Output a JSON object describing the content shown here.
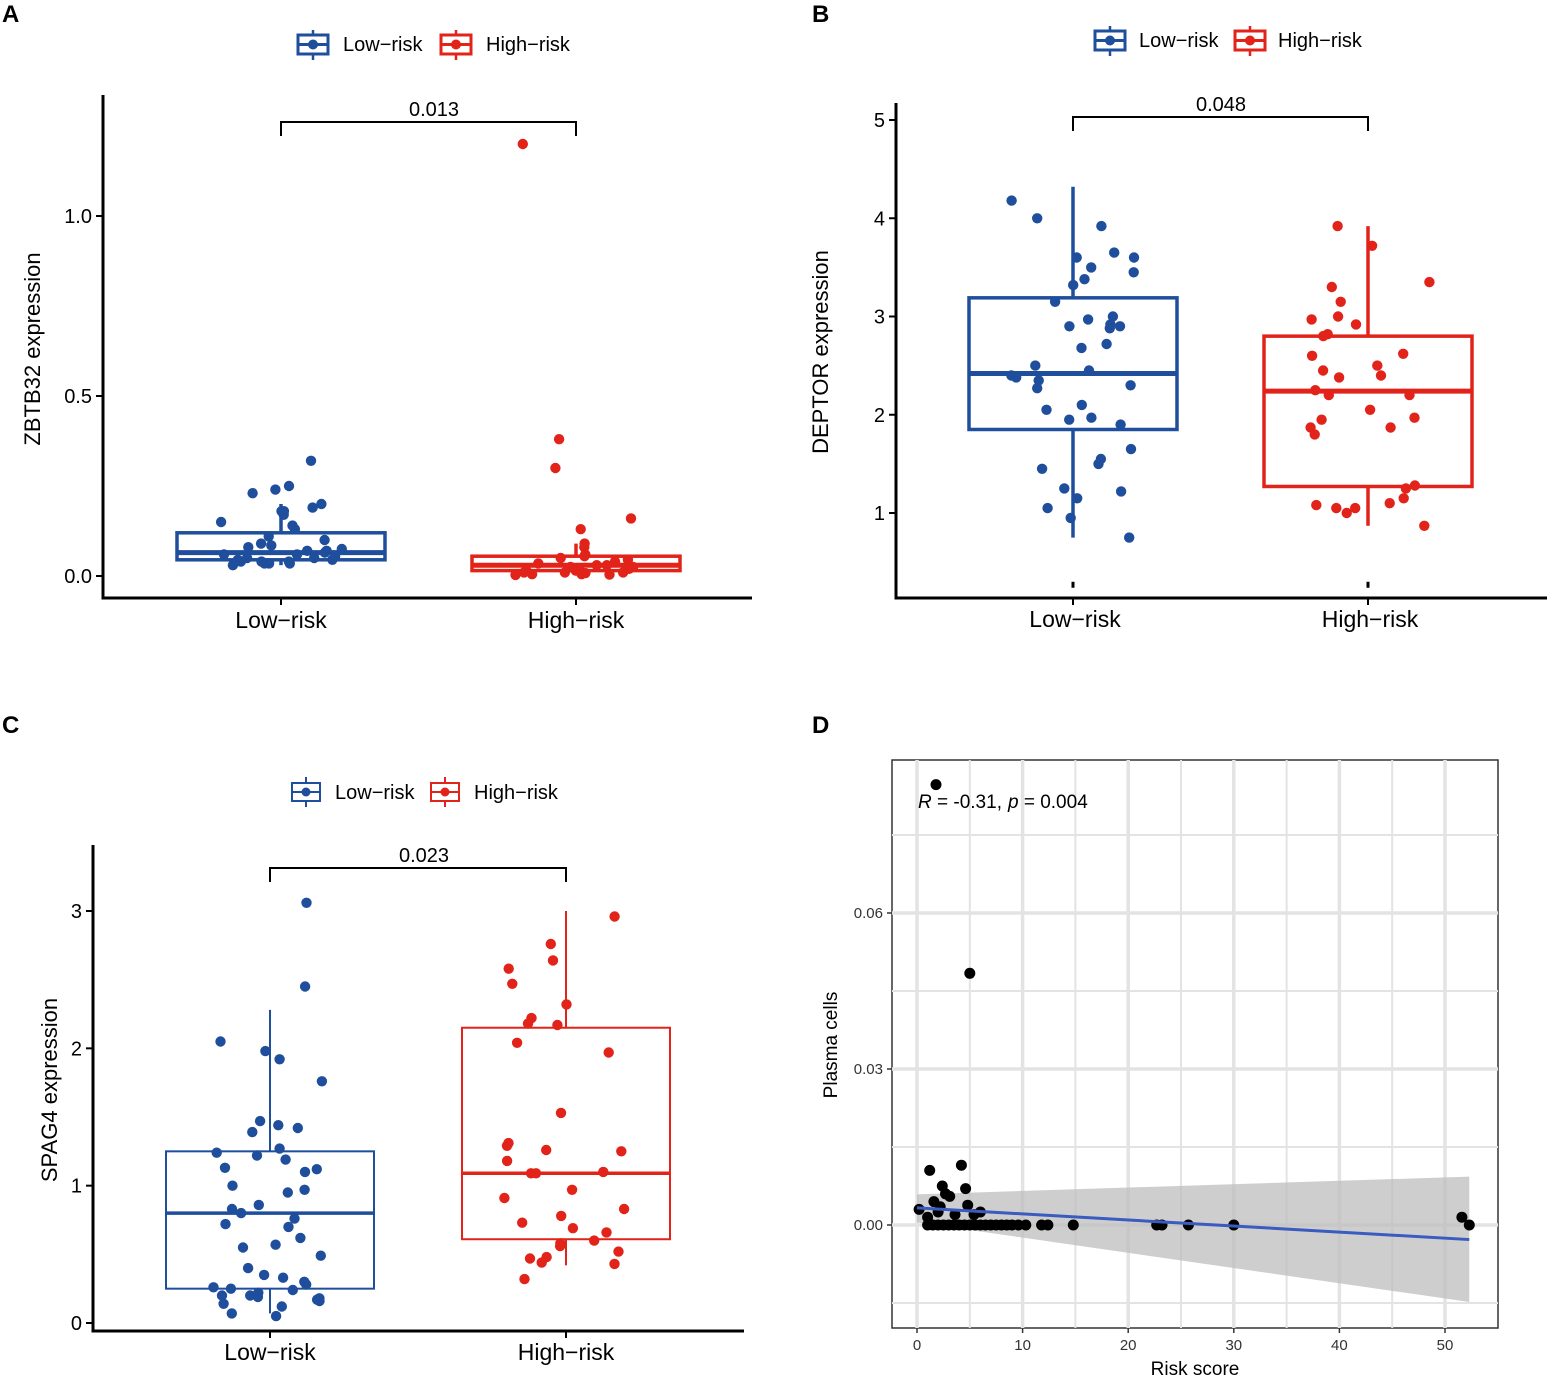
{
  "chart_data": [
    {
      "panel": "A",
      "type": "box",
      "ylabel": "ZBTB32 expression",
      "categories": [
        "Low−risk",
        "High−risk"
      ],
      "legend": [
        "Low−risk",
        "High−risk"
      ],
      "legend_position": "top",
      "ylim": [
        -0.06,
        1.33
      ],
      "yticks": [
        0.0,
        0.5,
        1.0
      ],
      "ytick_labels": [
        "0.0",
        "0.5",
        "1.0"
      ],
      "pvalue": "0.013",
      "boxes": [
        {
          "q1": 0.045,
          "median": 0.065,
          "q3": 0.12,
          "wlo": 0.03,
          "whi": 0.2
        },
        {
          "q1": 0.015,
          "median": 0.03,
          "q3": 0.055,
          "wlo": 0.002,
          "whi": 0.09
        }
      ],
      "points": [
        [
          0.32,
          0.25,
          0.24,
          0.23,
          0.2,
          0.19,
          0.18,
          0.18,
          0.17,
          0.15,
          0.14,
          0.13,
          0.11,
          0.1,
          0.09,
          0.085,
          0.08,
          0.075,
          0.07,
          0.07,
          0.065,
          0.06,
          0.06,
          0.055,
          0.05,
          0.05,
          0.045,
          0.045,
          0.04,
          0.04,
          0.04,
          0.035,
          0.035,
          0.035,
          0.03
        ],
        [
          1.2,
          0.38,
          0.3,
          0.16,
          0.13,
          0.09,
          0.08,
          0.06,
          0.055,
          0.05,
          0.045,
          0.04,
          0.035,
          0.03,
          0.03,
          0.025,
          0.025,
          0.02,
          0.02,
          0.02,
          0.015,
          0.015,
          0.01,
          0.01,
          0.01,
          0.008,
          0.005,
          0.005,
          0.004,
          0.003
        ]
      ]
    },
    {
      "panel": "B",
      "type": "box",
      "ylabel": "DEPTOR expression",
      "categories": [
        "Low−risk",
        "High−risk"
      ],
      "legend": [
        "Low−risk",
        "High−risk"
      ],
      "legend_position": "top",
      "ylim": [
        0.2,
        5.2
      ],
      "yticks": [
        1,
        2,
        3,
        4,
        5
      ],
      "ytick_labels": [
        "1",
        "2",
        "3",
        "4",
        "5"
      ],
      "pvalue": "0.048",
      "boxes": [
        {
          "q1": 1.85,
          "median": 2.42,
          "q3": 3.19,
          "wlo": 0.75,
          "whi": 4.32
        },
        {
          "q1": 1.27,
          "median": 2.24,
          "q3": 2.8,
          "wlo": 0.87,
          "whi": 3.92
        }
      ],
      "points": [
        [
          4.18,
          4.0,
          3.92,
          3.65,
          3.6,
          3.6,
          3.5,
          3.45,
          3.38,
          3.32,
          3.15,
          3.0,
          2.97,
          2.92,
          2.9,
          2.9,
          2.88,
          2.72,
          2.68,
          2.5,
          2.45,
          2.4,
          2.38,
          2.35,
          2.3,
          2.27,
          2.1,
          2.05,
          1.97,
          1.95,
          1.9,
          1.65,
          1.55,
          1.5,
          1.45,
          1.25,
          1.22,
          1.15,
          1.05,
          0.95,
          0.75
        ],
        [
          3.92,
          3.72,
          3.35,
          3.3,
          3.15,
          3.0,
          2.97,
          2.92,
          2.82,
          2.8,
          2.62,
          2.6,
          2.5,
          2.45,
          2.4,
          2.38,
          2.25,
          2.2,
          2.2,
          2.05,
          1.97,
          1.95,
          1.87,
          1.87,
          1.8,
          1.28,
          1.25,
          1.15,
          1.1,
          1.08,
          1.05,
          1.05,
          1.0,
          0.87
        ]
      ]
    },
    {
      "panel": "C",
      "type": "box",
      "ylabel": "SPAG4 expression",
      "categories": [
        "Low−risk",
        "High−risk"
      ],
      "legend": [
        "Low−risk",
        "High−risk"
      ],
      "legend_position": "top",
      "ylim": [
        -0.05,
        3.45
      ],
      "yticks": [
        0,
        1,
        2,
        3
      ],
      "ytick_labels": [
        "0",
        "1",
        "2",
        "3"
      ],
      "pvalue": "0.023",
      "boxes": [
        {
          "q1": 0.25,
          "median": 0.8,
          "q3": 1.25,
          "wlo": 0.07,
          "whi": 2.28
        },
        {
          "q1": 0.61,
          "median": 1.09,
          "q3": 2.15,
          "wlo": 0.42,
          "whi": 3.0
        }
      ],
      "points": [
        [
          3.06,
          2.45,
          2.05,
          1.98,
          1.92,
          1.76,
          1.47,
          1.44,
          1.42,
          1.39,
          1.27,
          1.24,
          1.22,
          1.19,
          1.13,
          1.12,
          1.1,
          1.0,
          0.97,
          0.95,
          0.86,
          0.83,
          0.8,
          0.76,
          0.72,
          0.7,
          0.62,
          0.57,
          0.55,
          0.49,
          0.4,
          0.35,
          0.33,
          0.3,
          0.28,
          0.26,
          0.25,
          0.24,
          0.22,
          0.2,
          0.2,
          0.19,
          0.18,
          0.17,
          0.16,
          0.14,
          0.12,
          0.07,
          0.05
        ],
        [
          2.96,
          2.76,
          2.64,
          2.58,
          2.47,
          2.32,
          2.22,
          2.18,
          2.17,
          2.04,
          1.97,
          1.53,
          1.31,
          1.29,
          1.26,
          1.25,
          1.18,
          1.1,
          1.09,
          1.09,
          0.97,
          0.91,
          0.83,
          0.78,
          0.73,
          0.69,
          0.66,
          0.6,
          0.58,
          0.56,
          0.52,
          0.48,
          0.47,
          0.44,
          0.43,
          0.32
        ]
      ]
    },
    {
      "panel": "D",
      "type": "scatter",
      "title": "",
      "xlabel": "Risk score",
      "ylabel": "Plasma cells",
      "xlim": [
        -2.5,
        55
      ],
      "ylim": [
        -0.02,
        0.09
      ],
      "xticks": [
        0,
        10,
        20,
        30,
        40,
        50
      ],
      "xtick_labels": [
        "0",
        "10",
        "20",
        "30",
        "40",
        "50"
      ],
      "yticks": [
        0.0,
        0.03,
        0.06
      ],
      "ytick_labels": [
        "0.00",
        "0.03",
        "0.06"
      ],
      "annotation": {
        "r_label": "R",
        "r_text": " = -0.31,",
        "p_label": "p",
        "p_text": " = 0.004"
      },
      "fit": {
        "x": [
          0,
          52.3
        ],
        "y": [
          0.0033,
          -0.0028
        ]
      },
      "ci_band": {
        "x": [
          0,
          52.3
        ],
        "upper": [
          0.0059,
          0.0093
        ],
        "lower": [
          0.0005,
          -0.0148
        ]
      },
      "points": [
        [
          1.8,
          0.0847
        ],
        [
          5.0,
          0.0484
        ],
        [
          4.2,
          0.0115
        ],
        [
          1.2,
          0.0105
        ],
        [
          2.4,
          0.0075
        ],
        [
          4.6,
          0.007
        ],
        [
          2.7,
          0.006
        ],
        [
          3.1,
          0.0055
        ],
        [
          1.6,
          0.0045
        ],
        [
          0.2,
          0.003
        ],
        [
          2.2,
          0.0035
        ],
        [
          2.0,
          0.0025
        ],
        [
          4.8,
          0.0038
        ],
        [
          3.6,
          0.002
        ],
        [
          1.0,
          0.0015
        ],
        [
          5.4,
          0.002
        ],
        [
          6.0,
          0.0025
        ],
        [
          1.0,
          0.0
        ],
        [
          1.5,
          0.0
        ],
        [
          2.0,
          0.0
        ],
        [
          2.5,
          0.0
        ],
        [
          3.0,
          0.0
        ],
        [
          3.5,
          0.0
        ],
        [
          4.0,
          0.0
        ],
        [
          4.5,
          0.0
        ],
        [
          5.0,
          0.0
        ],
        [
          5.5,
          0.0
        ],
        [
          6.0,
          0.0
        ],
        [
          6.5,
          0.0
        ],
        [
          7.0,
          0.0
        ],
        [
          7.5,
          0.0
        ],
        [
          8.0,
          0.0
        ],
        [
          8.5,
          0.0
        ],
        [
          9.0,
          0.0
        ],
        [
          9.6,
          0.0
        ],
        [
          10.3,
          0.0
        ],
        [
          11.8,
          0.0
        ],
        [
          12.4,
          0.0
        ],
        [
          14.8,
          0.0
        ],
        [
          22.7,
          0.0
        ],
        [
          23.2,
          0.0
        ],
        [
          25.7,
          0.0
        ],
        [
          30.0,
          0.0
        ],
        [
          51.6,
          0.0015
        ],
        [
          52.3,
          0.0
        ]
      ]
    }
  ],
  "panels": {
    "A": {
      "label": "A"
    },
    "B": {
      "label": "B"
    },
    "C": {
      "label": "C"
    },
    "D": {
      "label": "D"
    }
  },
  "legend": {
    "low": "Low−risk",
    "high": "High−risk"
  },
  "colors": {
    "low": "#1f4e9c",
    "high": "#e2231a",
    "point_d": "#000000",
    "fit": "#3a5bbf",
    "band": "#bdbdbd",
    "grid": "#e3e3e3"
  }
}
